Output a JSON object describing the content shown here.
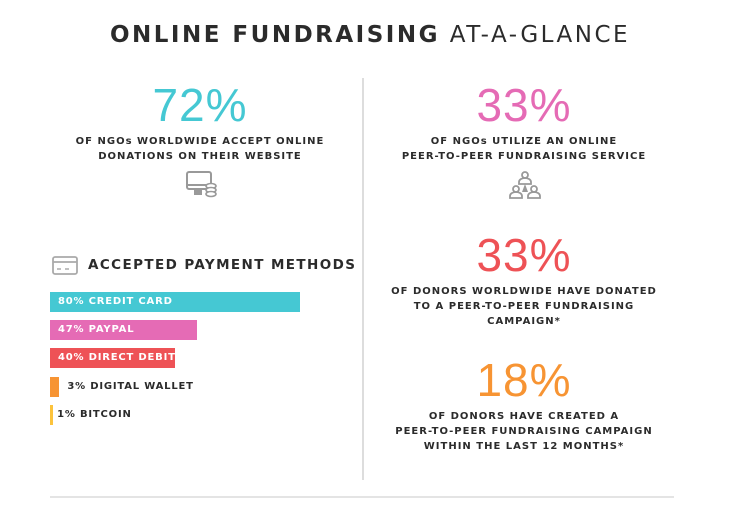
{
  "header": {
    "title_bold": "ONLINE FUNDRAISING",
    "title_light": "AT-A-GLANCE"
  },
  "stats": [
    {
      "value": "72%",
      "caption_1": "OF NGOs WORLDWIDE ACCEPT ONLINE",
      "caption_2": "DONATIONS ON THEIR WEBSITE",
      "color": "#45c8d3",
      "icon": "computer-coins-icon"
    },
    {
      "value": "33%",
      "caption_1": "OF NGOs UTILIZE AN ONLINE",
      "caption_2": "PEER-TO-PEER FUNDRAISING SERVICE",
      "color": "#e56bb5",
      "icon": "people-network-icon"
    },
    {
      "value": "33%",
      "caption_1": "OF DONORS WORLDWIDE HAVE DONATED",
      "caption_2": "TO A PEER-TO-PEER FUNDRAISING",
      "caption_3": "CAMPAIGN*",
      "color": "#ee5256"
    },
    {
      "value": "18%",
      "caption_1": "OF DONORS HAVE CREATED A",
      "caption_2": "PEER-TO-PEER FUNDRAISING CAMPAIGN",
      "caption_3": "WITHIN THE LAST 12 MONTHS*",
      "color": "#f79433"
    }
  ],
  "chart_data": {
    "type": "bar",
    "orientation": "horizontal",
    "title": "ACCEPTED PAYMENT METHODS",
    "icon": "credit-card-icon",
    "categories": [
      "CREDIT CARD",
      "PAYPAL",
      "DIRECT DEBIT",
      "DIGITAL WALLET",
      "BITCOIN"
    ],
    "values": [
      80,
      47,
      40,
      3,
      1
    ],
    "labels": [
      "80% CREDIT CARD",
      "47% PAYPAL",
      "40% DIRECT DEBIT",
      "3% DIGITAL WALLET",
      "1% BITCOIN"
    ],
    "colors": [
      "#45c8d3",
      "#e56bb5",
      "#ee5256",
      "#f79433",
      "#fcc33c"
    ],
    "unit": "%",
    "grid": false
  }
}
